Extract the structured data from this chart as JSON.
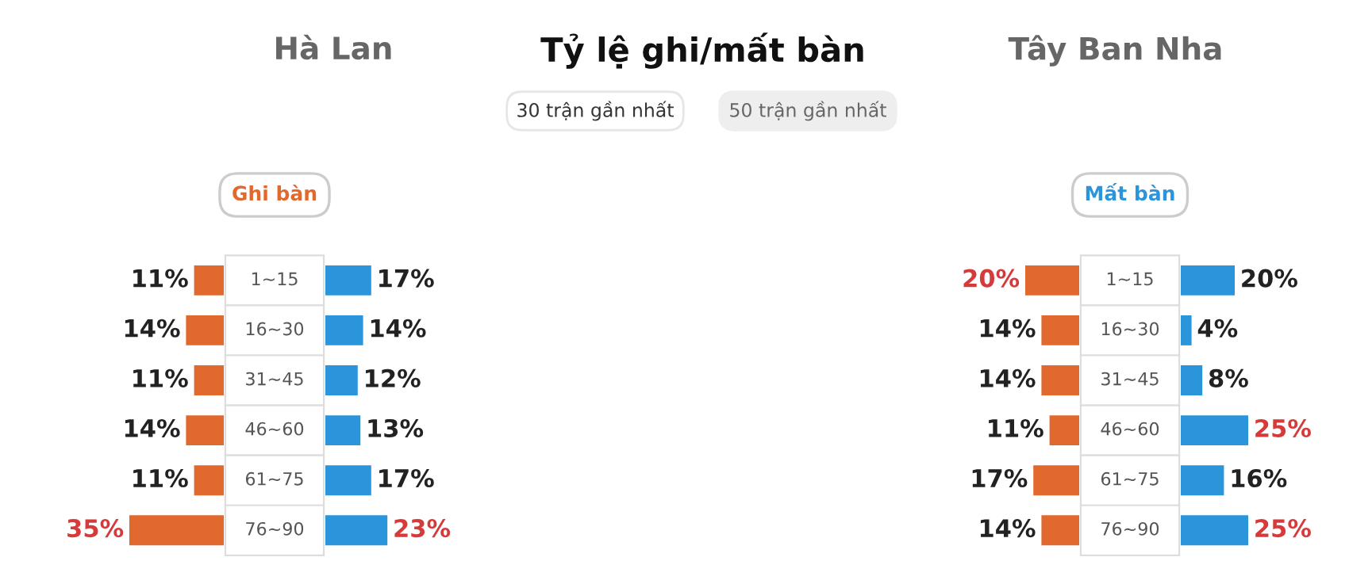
{
  "chart_data": [
    {
      "type": "bar",
      "orientation": "horizontal",
      "subtitle": "Ghi bàn",
      "annotations": [
        "Tỷ lệ ghi/mất bàn",
        "30 trận gần nhất",
        "50 trận gần nhất"
      ],
      "categories": [
        "1~15",
        "16~30",
        "31~45",
        "46~60",
        "61~75",
        "76~90"
      ],
      "series": [
        {
          "color": "#e2692e",
          "values": [
            11,
            14,
            11,
            14,
            11,
            35
          ],
          "value_labels": [
            "11%",
            "14%",
            "11%",
            "14%",
            "11%",
            "35%"
          ]
        }
      ]
    },
    {
      "type": "bar",
      "orientation": "horizontal",
      "tick_labels": false,
      "title": "Hà Lan",
      "categories": [
        null,
        null,
        null,
        null,
        null,
        null
      ],
      "series": [
        {
          "color": "#2a95db",
          "values": [
            17,
            14,
            12,
            13,
            17,
            23
          ],
          "value_labels": [
            "17%",
            "14%",
            "12%",
            "13%",
            "17%",
            "23%"
          ]
        }
      ]
    },
    {
      "type": "bar",
      "orientation": "horizontal",
      "title": "Tây Ban Nha",
      "categories": [
        "1~15",
        "16~30",
        "31~45",
        "46~60",
        "61~75",
        "76~90"
      ],
      "series": [
        {
          "color": "#e2692e",
          "values": [
            20,
            14,
            14,
            11,
            17,
            14
          ],
          "value_labels": [
            "20%",
            "14%",
            "14%",
            "11%",
            "17%",
            "14%"
          ]
        }
      ]
    },
    {
      "type": "bar",
      "orientation": "horizontal",
      "tick_labels": false,
      "subtitle": "Mất bàn",
      "categories": [
        null,
        null,
        null,
        null,
        null,
        null
      ],
      "series": [
        {
          "color": "#2a95db",
          "values": [
            20,
            4,
            8,
            25,
            16,
            25
          ],
          "value_labels": [
            "20%",
            "4%",
            "8%",
            "25%",
            "16%",
            "25%"
          ]
        }
      ]
    }
  ]
}
